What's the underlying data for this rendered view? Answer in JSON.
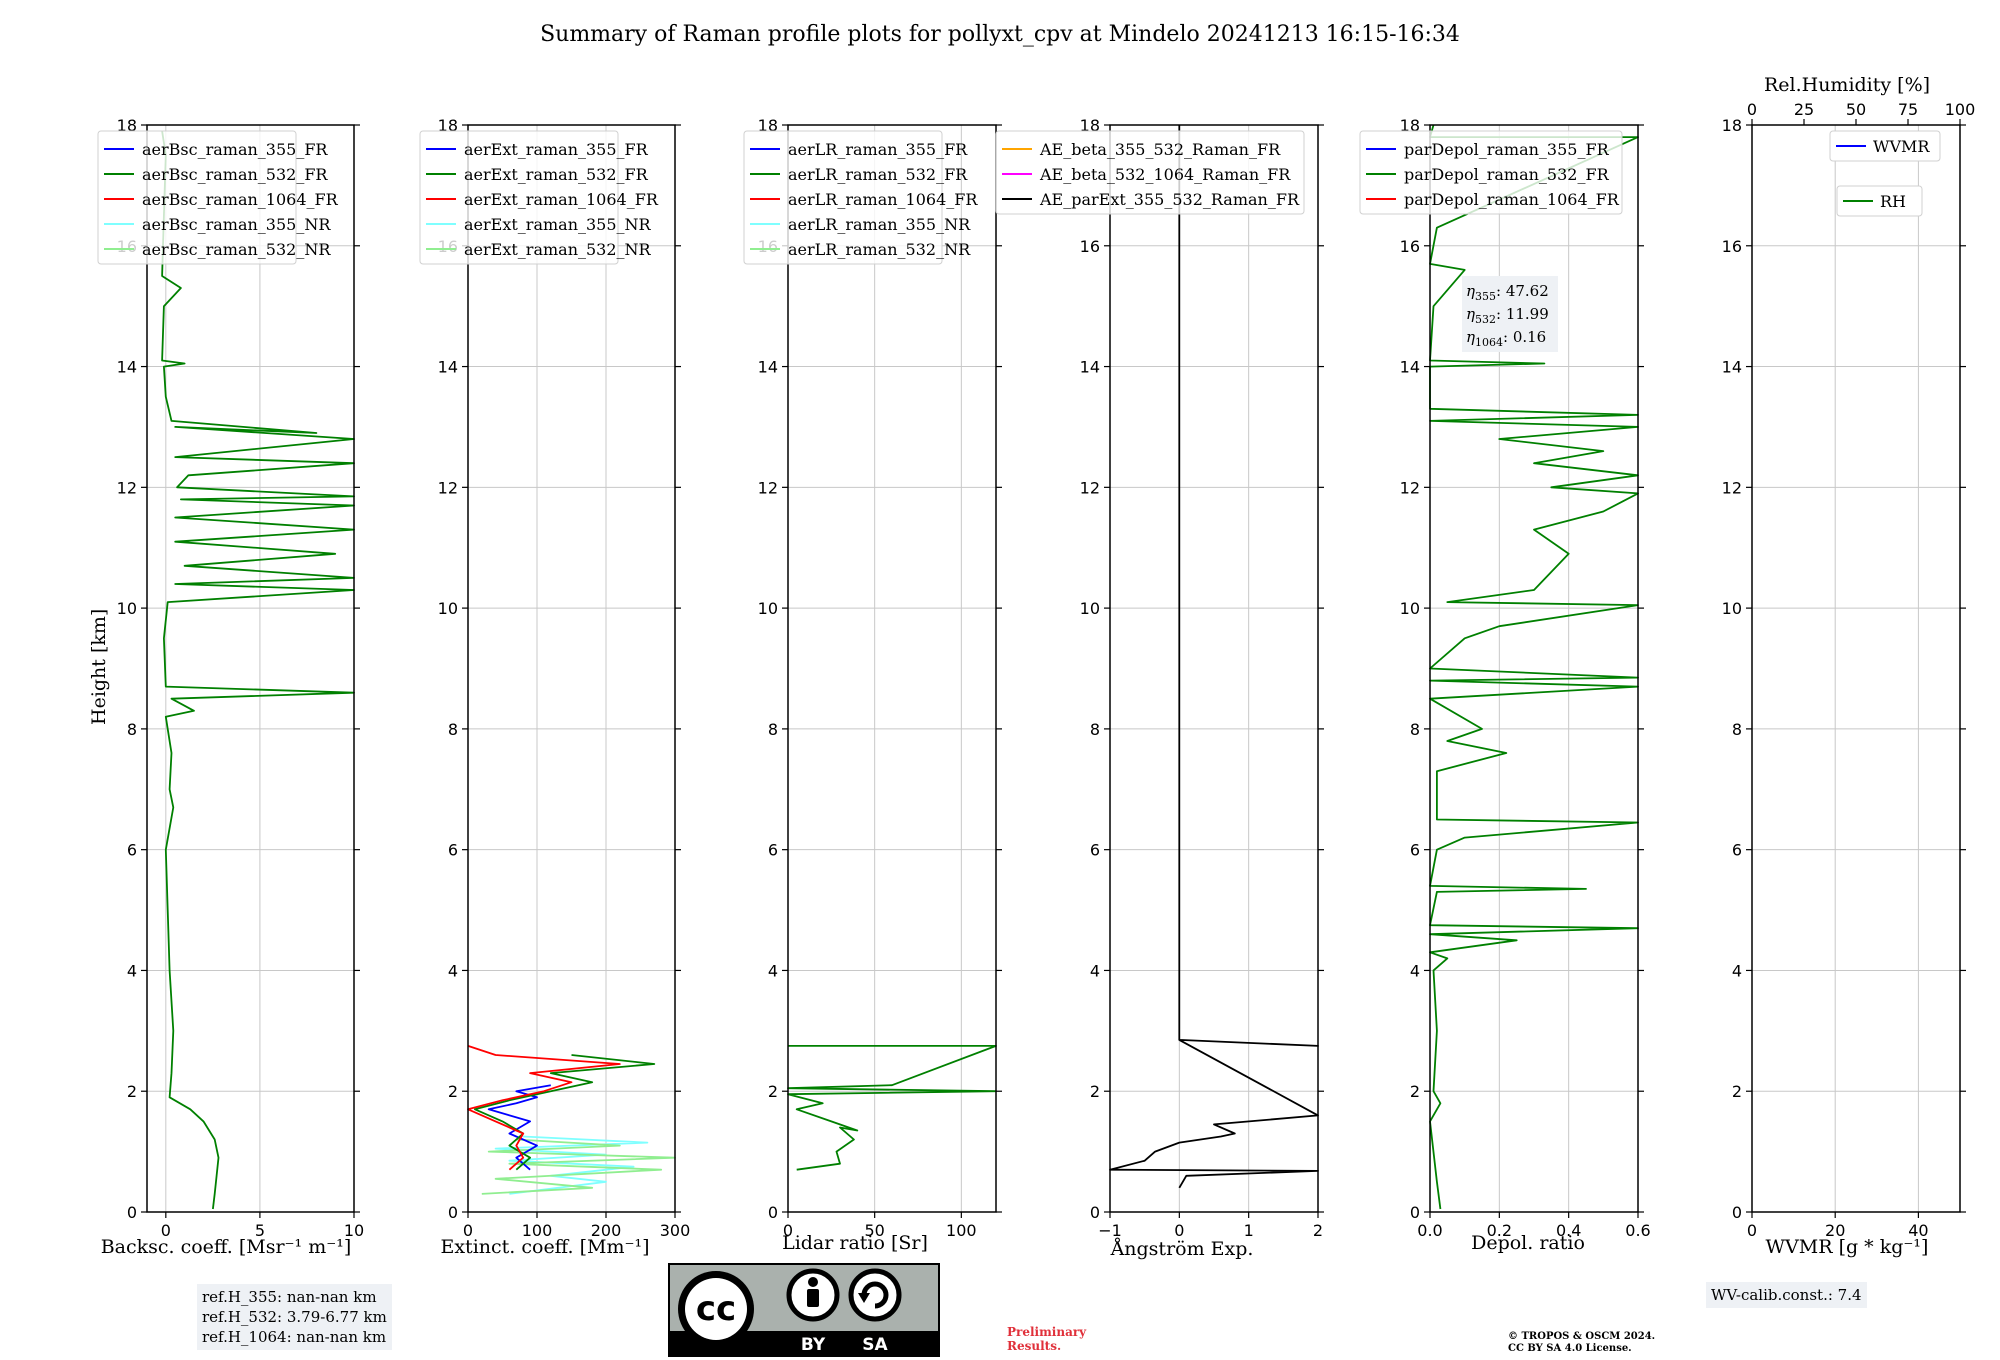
{
  "title": "Summary of Raman profile plots for pollyxt_cpv at Mindelo 20241213 16:15-16:34",
  "colors": {
    "ch355_FR": "#0000ff",
    "ch532_FR": "#008000",
    "ch1064_FR": "#ff0000",
    "ch355_NR": "#7fffff",
    "ch532_NR": "#90ee90",
    "AE_beta_355_532": "#ffa500",
    "AE_beta_532_1064": "#ff00ff",
    "AE_parExt": "#000000",
    "prelim": "#e0303a"
  },
  "ylabel": "Height [km]",
  "chart_data": [
    {
      "id": "bsc",
      "type": "line",
      "xlabel": "Backsc. coeff. [Msr⁻¹ m⁻¹]",
      "xlim": [
        -1,
        10
      ],
      "ylim": [
        0,
        18
      ],
      "xticks": [
        0,
        5,
        10
      ],
      "yticks": [
        0,
        2,
        4,
        6,
        8,
        10,
        12,
        14,
        16,
        18
      ],
      "legend": [
        "aerBsc_raman_355_FR",
        "aerBsc_raman_532_FR",
        "aerBsc_raman_1064_FR",
        "aerBsc_raman_355_NR",
        "aerBsc_raman_532_NR"
      ],
      "legend_placement": "top-left",
      "series": [
        {
          "name": "aerBsc_raman_532_FR",
          "color_key": "ch532_FR",
          "points": [
            [
              2.5,
              0.05
            ],
            [
              2.6,
              0.3
            ],
            [
              2.7,
              0.6
            ],
            [
              2.8,
              0.9
            ],
            [
              2.6,
              1.2
            ],
            [
              2.0,
              1.5
            ],
            [
              1.3,
              1.7
            ],
            [
              0.2,
              1.9
            ],
            [
              0.3,
              2.3
            ],
            [
              0.4,
              3.0
            ],
            [
              0.2,
              4.0
            ],
            [
              0.1,
              5.0
            ],
            [
              0.0,
              6.0
            ],
            [
              0.4,
              6.7
            ],
            [
              0.2,
              7.0
            ],
            [
              0.3,
              7.6
            ],
            [
              0.0,
              8.2
            ],
            [
              1.5,
              8.3
            ],
            [
              0.3,
              8.5
            ],
            [
              10,
              8.6
            ],
            [
              0.0,
              8.7
            ],
            [
              -0.1,
              9.5
            ],
            [
              0.1,
              10.1
            ],
            [
              10,
              10.3
            ],
            [
              0.5,
              10.4
            ],
            [
              10,
              10.5
            ],
            [
              1.0,
              10.7
            ],
            [
              9,
              10.9
            ],
            [
              0.5,
              11.1
            ],
            [
              10,
              11.3
            ],
            [
              0.5,
              11.5
            ],
            [
              10,
              11.7
            ],
            [
              0.8,
              11.8
            ],
            [
              10,
              11.85
            ],
            [
              0.6,
              12.0
            ],
            [
              1.2,
              12.2
            ],
            [
              10,
              12.4
            ],
            [
              0.5,
              12.5
            ],
            [
              10,
              12.8
            ],
            [
              0.5,
              13.0
            ],
            [
              8,
              12.9
            ],
            [
              0.3,
              13.1
            ],
            [
              0.0,
              13.5
            ],
            [
              -0.1,
              14.0
            ],
            [
              1.0,
              14.05
            ],
            [
              -0.2,
              14.1
            ],
            [
              -0.1,
              15.0
            ],
            [
              0.8,
              15.3
            ],
            [
              -0.2,
              15.5
            ],
            [
              -0.1,
              16.5
            ],
            [
              0.0,
              17.5
            ],
            [
              -0.2,
              17.9
            ]
          ]
        }
      ]
    },
    {
      "id": "ext",
      "type": "line",
      "xlabel": "Extinct. coeff. [Mm⁻¹]",
      "xlim": [
        0,
        300
      ],
      "ylim": [
        0,
        18
      ],
      "xticks": [
        0,
        100,
        200,
        300
      ],
      "yticks": [
        0,
        2,
        4,
        6,
        8,
        10,
        12,
        14,
        16,
        18
      ],
      "legend": [
        "aerExt_raman_355_FR",
        "aerExt_raman_532_FR",
        "aerExt_raman_1064_FR",
        "aerExt_raman_355_NR",
        "aerExt_raman_532_NR"
      ],
      "legend_placement": "top-left",
      "series": [
        {
          "name": "aerExt_raman_355_NR",
          "color_key": "ch355_NR",
          "points": [
            [
              60,
              0.3
            ],
            [
              200,
              0.5
            ],
            [
              120,
              0.6
            ],
            [
              240,
              0.75
            ],
            [
              60,
              0.85
            ],
            [
              200,
              0.95
            ],
            [
              40,
              1.05
            ],
            [
              260,
              1.15
            ],
            [
              80,
              1.25
            ]
          ]
        },
        {
          "name": "aerExt_raman_532_NR",
          "color_key": "ch532_NR",
          "points": [
            [
              20,
              0.3
            ],
            [
              180,
              0.4
            ],
            [
              40,
              0.55
            ],
            [
              280,
              0.7
            ],
            [
              60,
              0.8
            ],
            [
              300,
              0.9
            ],
            [
              30,
              1.0
            ],
            [
              220,
              1.1
            ],
            [
              70,
              1.2
            ]
          ]
        },
        {
          "name": "aerExt_raman_355_FR",
          "color_key": "ch355_FR",
          "points": [
            [
              90,
              0.7
            ],
            [
              70,
              0.9
            ],
            [
              100,
              1.1
            ],
            [
              60,
              1.3
            ],
            [
              90,
              1.5
            ],
            [
              30,
              1.7
            ],
            [
              70,
              1.8
            ],
            [
              100,
              1.9
            ],
            [
              70,
              2.0
            ],
            [
              120,
              2.1
            ]
          ]
        },
        {
          "name": "aerExt_raman_532_FR",
          "color_key": "ch532_FR",
          "points": [
            [
              70,
              0.7
            ],
            [
              90,
              0.9
            ],
            [
              60,
              1.1
            ],
            [
              80,
              1.3
            ],
            [
              50,
              1.5
            ],
            [
              10,
              1.7
            ],
            [
              60,
              1.85
            ],
            [
              120,
              2.0
            ],
            [
              180,
              2.15
            ],
            [
              120,
              2.3
            ],
            [
              270,
              2.45
            ],
            [
              150,
              2.6
            ]
          ]
        },
        {
          "name": "aerExt_raman_1064_FR",
          "color_key": "ch1064_FR",
          "points": [
            [
              60,
              0.7
            ],
            [
              80,
              0.9
            ],
            [
              70,
              1.1
            ],
            [
              80,
              1.3
            ],
            [
              40,
              1.5
            ],
            [
              0,
              1.7
            ],
            [
              50,
              1.85
            ],
            [
              110,
              2.0
            ],
            [
              150,
              2.15
            ],
            [
              90,
              2.3
            ],
            [
              220,
              2.45
            ],
            [
              40,
              2.6
            ],
            [
              0,
              2.75
            ]
          ]
        }
      ]
    },
    {
      "id": "lr",
      "type": "line",
      "xlabel": "Lidar ratio [Sr]",
      "xlim": [
        0,
        120
      ],
      "ylim": [
        0,
        18
      ],
      "xticks": [
        0,
        50,
        100
      ],
      "yticks": [
        0,
        2,
        4,
        6,
        8,
        10,
        12,
        14,
        16,
        18
      ],
      "legend": [
        "aerLR_raman_355_FR",
        "aerLR_raman_532_FR",
        "aerLR_raman_1064_FR",
        "aerLR_raman_355_NR",
        "aerLR_raman_532_NR"
      ],
      "legend_placement": "top-left",
      "series": [
        {
          "name": "aerLR_raman_532_FR",
          "color_key": "ch532_FR",
          "points": [
            [
              5,
              0.7
            ],
            [
              30,
              0.8
            ],
            [
              28,
              1.0
            ],
            [
              38,
              1.2
            ],
            [
              30,
              1.4
            ],
            [
              40,
              1.35
            ],
            [
              25,
              1.5
            ],
            [
              5,
              1.7
            ],
            [
              20,
              1.8
            ],
            [
              0,
              1.95
            ],
            [
              120,
              2.0
            ],
            [
              0,
              2.05
            ],
            [
              60,
              2.1
            ],
            [
              120,
              2.75
            ],
            [
              0,
              2.75
            ]
          ]
        }
      ]
    },
    {
      "id": "ae",
      "type": "line",
      "xlabel": "Ångström Exp.",
      "xlim": [
        -1,
        2
      ],
      "ylim": [
        0,
        18
      ],
      "xticks": [
        -1,
        0,
        1,
        2
      ],
      "yticks": [
        0,
        2,
        4,
        6,
        8,
        10,
        12,
        14,
        16,
        18
      ],
      "legend": [
        "AE_beta_355_532_Raman_FR",
        "AE_beta_532_1064_Raman_FR",
        "AE_parExt_355_532_Raman_FR"
      ],
      "legend_placement": "top-left",
      "series": [
        {
          "name": "AE_parExt_355_532_Raman_FR",
          "color_key": "AE_parExt",
          "points": [
            [
              0,
              0.4
            ],
            [
              0.1,
              0.6
            ],
            [
              2,
              0.68
            ],
            [
              -1,
              0.7
            ],
            [
              -0.5,
              0.85
            ],
            [
              -0.35,
              1.0
            ],
            [
              0,
              1.15
            ],
            [
              0.6,
              1.25
            ],
            [
              0.8,
              1.3
            ],
            [
              0.5,
              1.45
            ],
            [
              2,
              1.6
            ],
            [
              0,
              2.85
            ],
            [
              2,
              2.75
            ],
            [
              0,
              2.85
            ],
            [
              0,
              18
            ]
          ]
        }
      ]
    },
    {
      "id": "depol",
      "type": "line",
      "xlabel": "Depol. ratio",
      "xlim": [
        0,
        0.6
      ],
      "ylim": [
        0,
        18
      ],
      "xticks": [
        0.0,
        0.2,
        0.4,
        0.6
      ],
      "yticks": [
        0,
        2,
        4,
        6,
        8,
        10,
        12,
        14,
        16,
        18
      ],
      "legend": [
        "parDepol_raman_355_FR",
        "parDepol_raman_532_FR",
        "parDepol_raman_1064_FR"
      ],
      "legend_placement": "top-left",
      "series": [
        {
          "name": "parDepol_raman_532_FR",
          "color_key": "ch532_FR",
          "points": [
            [
              0.03,
              0.05
            ],
            [
              0.02,
              0.5
            ],
            [
              0.0,
              1.5
            ],
            [
              0.03,
              1.8
            ],
            [
              0.01,
              2.0
            ],
            [
              0.02,
              3.0
            ],
            [
              0.01,
              4.0
            ],
            [
              0.05,
              4.2
            ],
            [
              0.0,
              4.3
            ],
            [
              0.25,
              4.5
            ],
            [
              0.0,
              4.6
            ],
            [
              0.6,
              4.7
            ],
            [
              0.0,
              4.75
            ],
            [
              0.02,
              5.3
            ],
            [
              0.45,
              5.35
            ],
            [
              0.0,
              5.4
            ],
            [
              0.02,
              6.0
            ],
            [
              0.1,
              6.2
            ],
            [
              0.6,
              6.45
            ],
            [
              0.02,
              6.5
            ],
            [
              0.02,
              7.3
            ],
            [
              0.22,
              7.6
            ],
            [
              0.05,
              7.8
            ],
            [
              0.15,
              8.0
            ],
            [
              0.0,
              8.5
            ],
            [
              0.6,
              8.7
            ],
            [
              0.0,
              8.8
            ],
            [
              0.6,
              8.85
            ],
            [
              0.0,
              9.0
            ],
            [
              0.1,
              9.5
            ],
            [
              0.2,
              9.7
            ],
            [
              0.6,
              10.05
            ],
            [
              0.05,
              10.1
            ],
            [
              0.3,
              10.3
            ],
            [
              0.4,
              10.9
            ],
            [
              0.3,
              11.3
            ],
            [
              0.5,
              11.6
            ],
            [
              0.6,
              11.9
            ],
            [
              0.35,
              12.0
            ],
            [
              0.6,
              12.2
            ],
            [
              0.3,
              12.4
            ],
            [
              0.5,
              12.6
            ],
            [
              0.2,
              12.8
            ],
            [
              0.6,
              13.0
            ],
            [
              0.0,
              13.1
            ],
            [
              0.6,
              13.2
            ],
            [
              0.0,
              13.3
            ],
            [
              0.0,
              14.0
            ],
            [
              0.33,
              14.05
            ],
            [
              0.0,
              14.1
            ],
            [
              0.01,
              15.0
            ],
            [
              0.1,
              15.6
            ],
            [
              0.0,
              15.7
            ],
            [
              0.02,
              16.3
            ],
            [
              0.6,
              17.8
            ],
            [
              0.0,
              17.8
            ],
            [
              0.01,
              18.0
            ]
          ]
        }
      ],
      "annotation": [
        {
          "sub": "355",
          "value": ": 47.62"
        },
        {
          "sub": "532",
          "value": ": 11.99"
        },
        {
          "sub": "1064",
          "value": ": 0.16"
        }
      ]
    },
    {
      "id": "wv",
      "type": "line",
      "xlabel": "WVMR [g * kg⁻¹]",
      "top_xlabel": "Rel.Humidity [%]",
      "xlim": [
        0,
        50
      ],
      "top_xlim": [
        0,
        100
      ],
      "ylim": [
        0,
        18
      ],
      "xticks": [
        0,
        20,
        40
      ],
      "top_xticks": [
        0,
        25,
        50,
        75,
        100
      ],
      "yticks": [
        0,
        2,
        4,
        6,
        8,
        10,
        12,
        14,
        16,
        18
      ],
      "legend": [
        "WVMR"
      ],
      "legend2": [
        "RH"
      ],
      "legend_placement": "top-right",
      "series": []
    }
  ],
  "refH": [
    "ref.H_355: nan-nan km",
    "ref.H_532: 3.79-6.77 km",
    "ref.H_1064: nan-nan km"
  ],
  "wvcalib": "WV-calib.const.: 7.4",
  "preliminary": [
    "Preliminary",
    "Results."
  ],
  "copyright": [
    "© TROPOS & OSCM 2024.",
    "CC BY SA 4.0 License."
  ],
  "license_badge": {
    "cc": "cc",
    "by": "BY",
    "sa": "SA"
  }
}
